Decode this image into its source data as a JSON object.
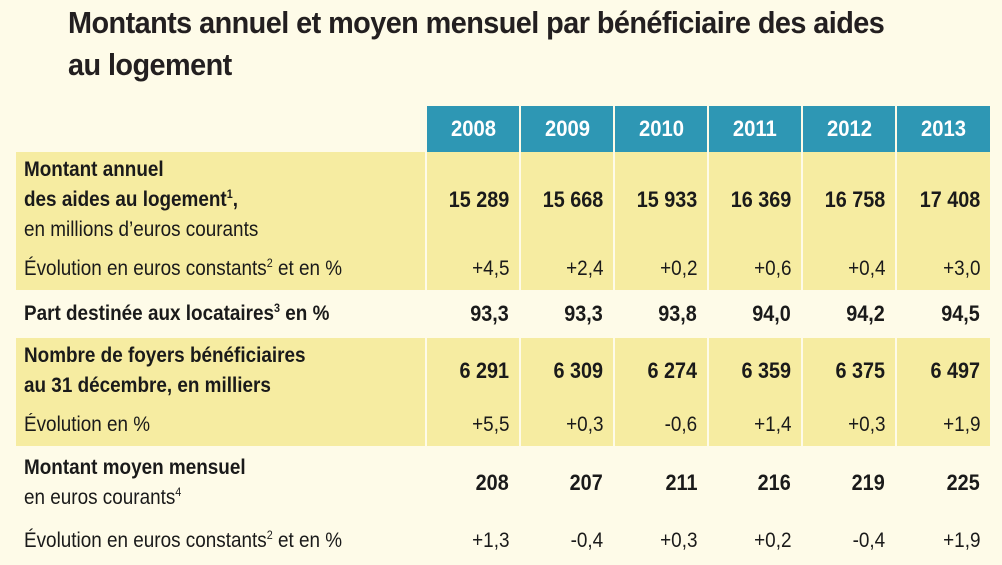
{
  "title": {
    "line1": "Montants annuel et moyen mensuel par bénéficiaire des aides",
    "line2": "au logement"
  },
  "years": [
    "2008",
    "2009",
    "2010",
    "2011",
    "2012",
    "2013"
  ],
  "rows": [
    {
      "label_lines": [
        "Montant annuel",
        "des aides au logement",
        "en millions d’euros courants"
      ],
      "sup": "1",
      "values": [
        "15 289",
        "15 668",
        "15 933",
        "16 369",
        "16 758",
        "17 408"
      ]
    },
    {
      "label_pre": "Évolution en euros constants",
      "sup": "2",
      "label_post": " et en %",
      "values": [
        "+4,5",
        "+2,4",
        "+0,2",
        "+0,6",
        "+0,4",
        "+3,0"
      ]
    },
    {
      "label_pre": "Part destinée aux locataires",
      "sup": "3",
      "label_post": " en %",
      "values": [
        "93,3",
        "93,3",
        "93,8",
        "94,0",
        "94,2",
        "94,5"
      ]
    },
    {
      "label_lines": [
        "Nombre de foyers bénéficiaires",
        "au 31 décembre, en milliers"
      ],
      "values": [
        "6 291",
        "6 309",
        "6 274",
        "6 359",
        "6 375",
        "6 497"
      ]
    },
    {
      "label": "Évolution en %",
      "values": [
        "+5,5",
        "+0,3",
        "-0,6",
        "+1,4",
        "+0,3",
        "+1,9"
      ]
    },
    {
      "label_lines": [
        "Montant moyen mensuel",
        "en euros courants"
      ],
      "sup": "4",
      "values": [
        "208",
        "207",
        "211",
        "216",
        "219",
        "225"
      ]
    },
    {
      "label_pre": "Évolution en euros constants",
      "sup": "2",
      "label_post": " et en %",
      "values": [
        "+1,3",
        "-0,4",
        "+0,3",
        "+0,2",
        "-0,4",
        "+1,9"
      ]
    }
  ],
  "colors": {
    "header_bg": "#2e97b4",
    "band_bg": "#f6eca1",
    "page_bg": "#fefbe8"
  }
}
